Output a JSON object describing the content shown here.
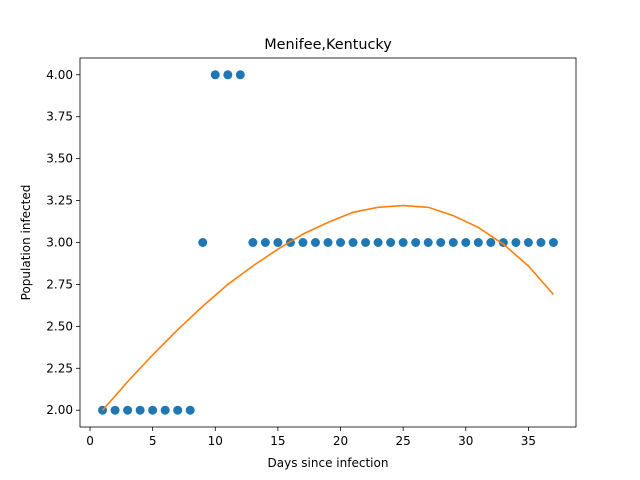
{
  "chart_data": {
    "type": "scatter",
    "title": "Menifee,Kentucky",
    "xlabel": "Days since infection",
    "ylabel": "Population infected",
    "xlim": [
      -0.8,
      38.8
    ],
    "ylim": [
      1.9,
      4.1
    ],
    "xticks": [
      0,
      5,
      10,
      15,
      20,
      25,
      30,
      35
    ],
    "yticks": [
      2.0,
      2.25,
      2.5,
      2.75,
      3.0,
      3.25,
      3.5,
      3.75,
      4.0
    ],
    "ytick_labels": [
      "2.00",
      "2.25",
      "2.50",
      "2.75",
      "3.00",
      "3.25",
      "3.50",
      "3.75",
      "4.00"
    ],
    "grid": false,
    "series": [
      {
        "kind": "scatter",
        "color": "#1f77b4",
        "x": [
          1,
          2,
          3,
          4,
          5,
          6,
          7,
          8,
          9,
          10,
          11,
          12,
          13,
          14,
          15,
          16,
          17,
          18,
          19,
          20,
          21,
          22,
          23,
          24,
          25,
          26,
          27,
          28,
          29,
          30,
          31,
          32,
          33,
          34,
          35,
          36,
          37
        ],
        "y": [
          2,
          2,
          2,
          2,
          2,
          2,
          2,
          2,
          3,
          4,
          4,
          4,
          3,
          3,
          3,
          3,
          3,
          3,
          3,
          3,
          3,
          3,
          3,
          3,
          3,
          3,
          3,
          3,
          3,
          3,
          3,
          3,
          3,
          3,
          3,
          3,
          3
        ]
      },
      {
        "kind": "line",
        "color": "#ff7f0e",
        "x": [
          1,
          3,
          5,
          7,
          9,
          11,
          13,
          15,
          17,
          19,
          21,
          23,
          25,
          27,
          29,
          31,
          33,
          35,
          37
        ],
        "y": [
          2.0,
          2.17,
          2.33,
          2.48,
          2.62,
          2.75,
          2.86,
          2.96,
          3.05,
          3.12,
          3.18,
          3.21,
          3.22,
          3.21,
          3.16,
          3.09,
          2.99,
          2.86,
          2.69
        ]
      }
    ]
  }
}
